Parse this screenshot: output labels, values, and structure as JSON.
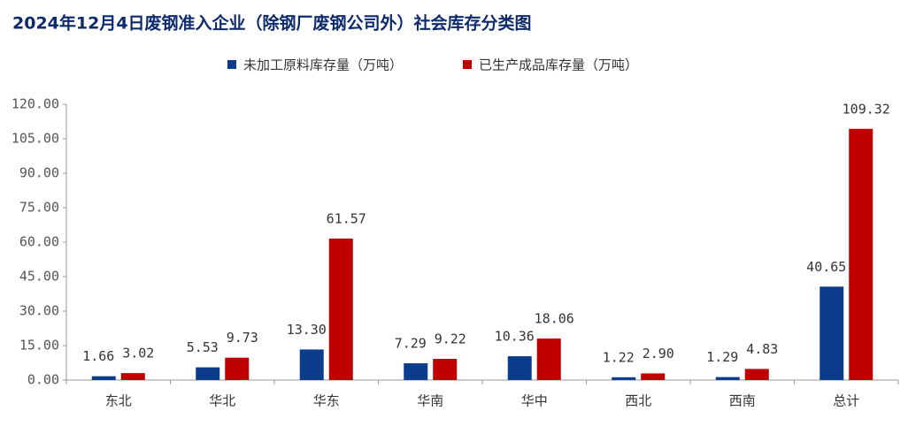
{
  "chart_data": {
    "type": "bar",
    "title": "2024年12月4日废钢准入企业（除钢厂废钢公司外）社会库存分类图",
    "categories": [
      "东北",
      "华北",
      "华东",
      "华南",
      "华中",
      "西北",
      "西南",
      "总计"
    ],
    "series": [
      {
        "name": "未加工原料库存量（万吨）",
        "color": "#0b3d8c",
        "values": [
          1.66,
          5.53,
          13.3,
          7.29,
          10.36,
          1.22,
          1.29,
          40.65
        ],
        "value_labels": [
          "1.66",
          "5.53",
          "13.30",
          "7.29",
          "10.36",
          "1.22",
          "1.29",
          "40.65"
        ]
      },
      {
        "name": "已生产成品库存量（万吨）",
        "color": "#c00000",
        "values": [
          3.02,
          9.73,
          61.57,
          9.22,
          18.06,
          2.9,
          4.83,
          109.32
        ],
        "value_labels": [
          "3.02",
          "9.73",
          "61.57",
          "9.22",
          "18.06",
          "2.90",
          "4.83",
          "109.32"
        ]
      }
    ],
    "ylim": [
      0,
      120
    ],
    "yticks": [
      {
        "value": 0,
        "label": "0.00"
      },
      {
        "value": 15,
        "label": "15.00"
      },
      {
        "value": 30,
        "label": "30.00"
      },
      {
        "value": 45,
        "label": "45.00"
      },
      {
        "value": 60,
        "label": "60.00"
      },
      {
        "value": 75,
        "label": "75.00"
      },
      {
        "value": 90,
        "label": "90.00"
      },
      {
        "value": 105,
        "label": "105.00"
      },
      {
        "value": 120,
        "label": "120.00"
      }
    ],
    "legend": "top"
  }
}
